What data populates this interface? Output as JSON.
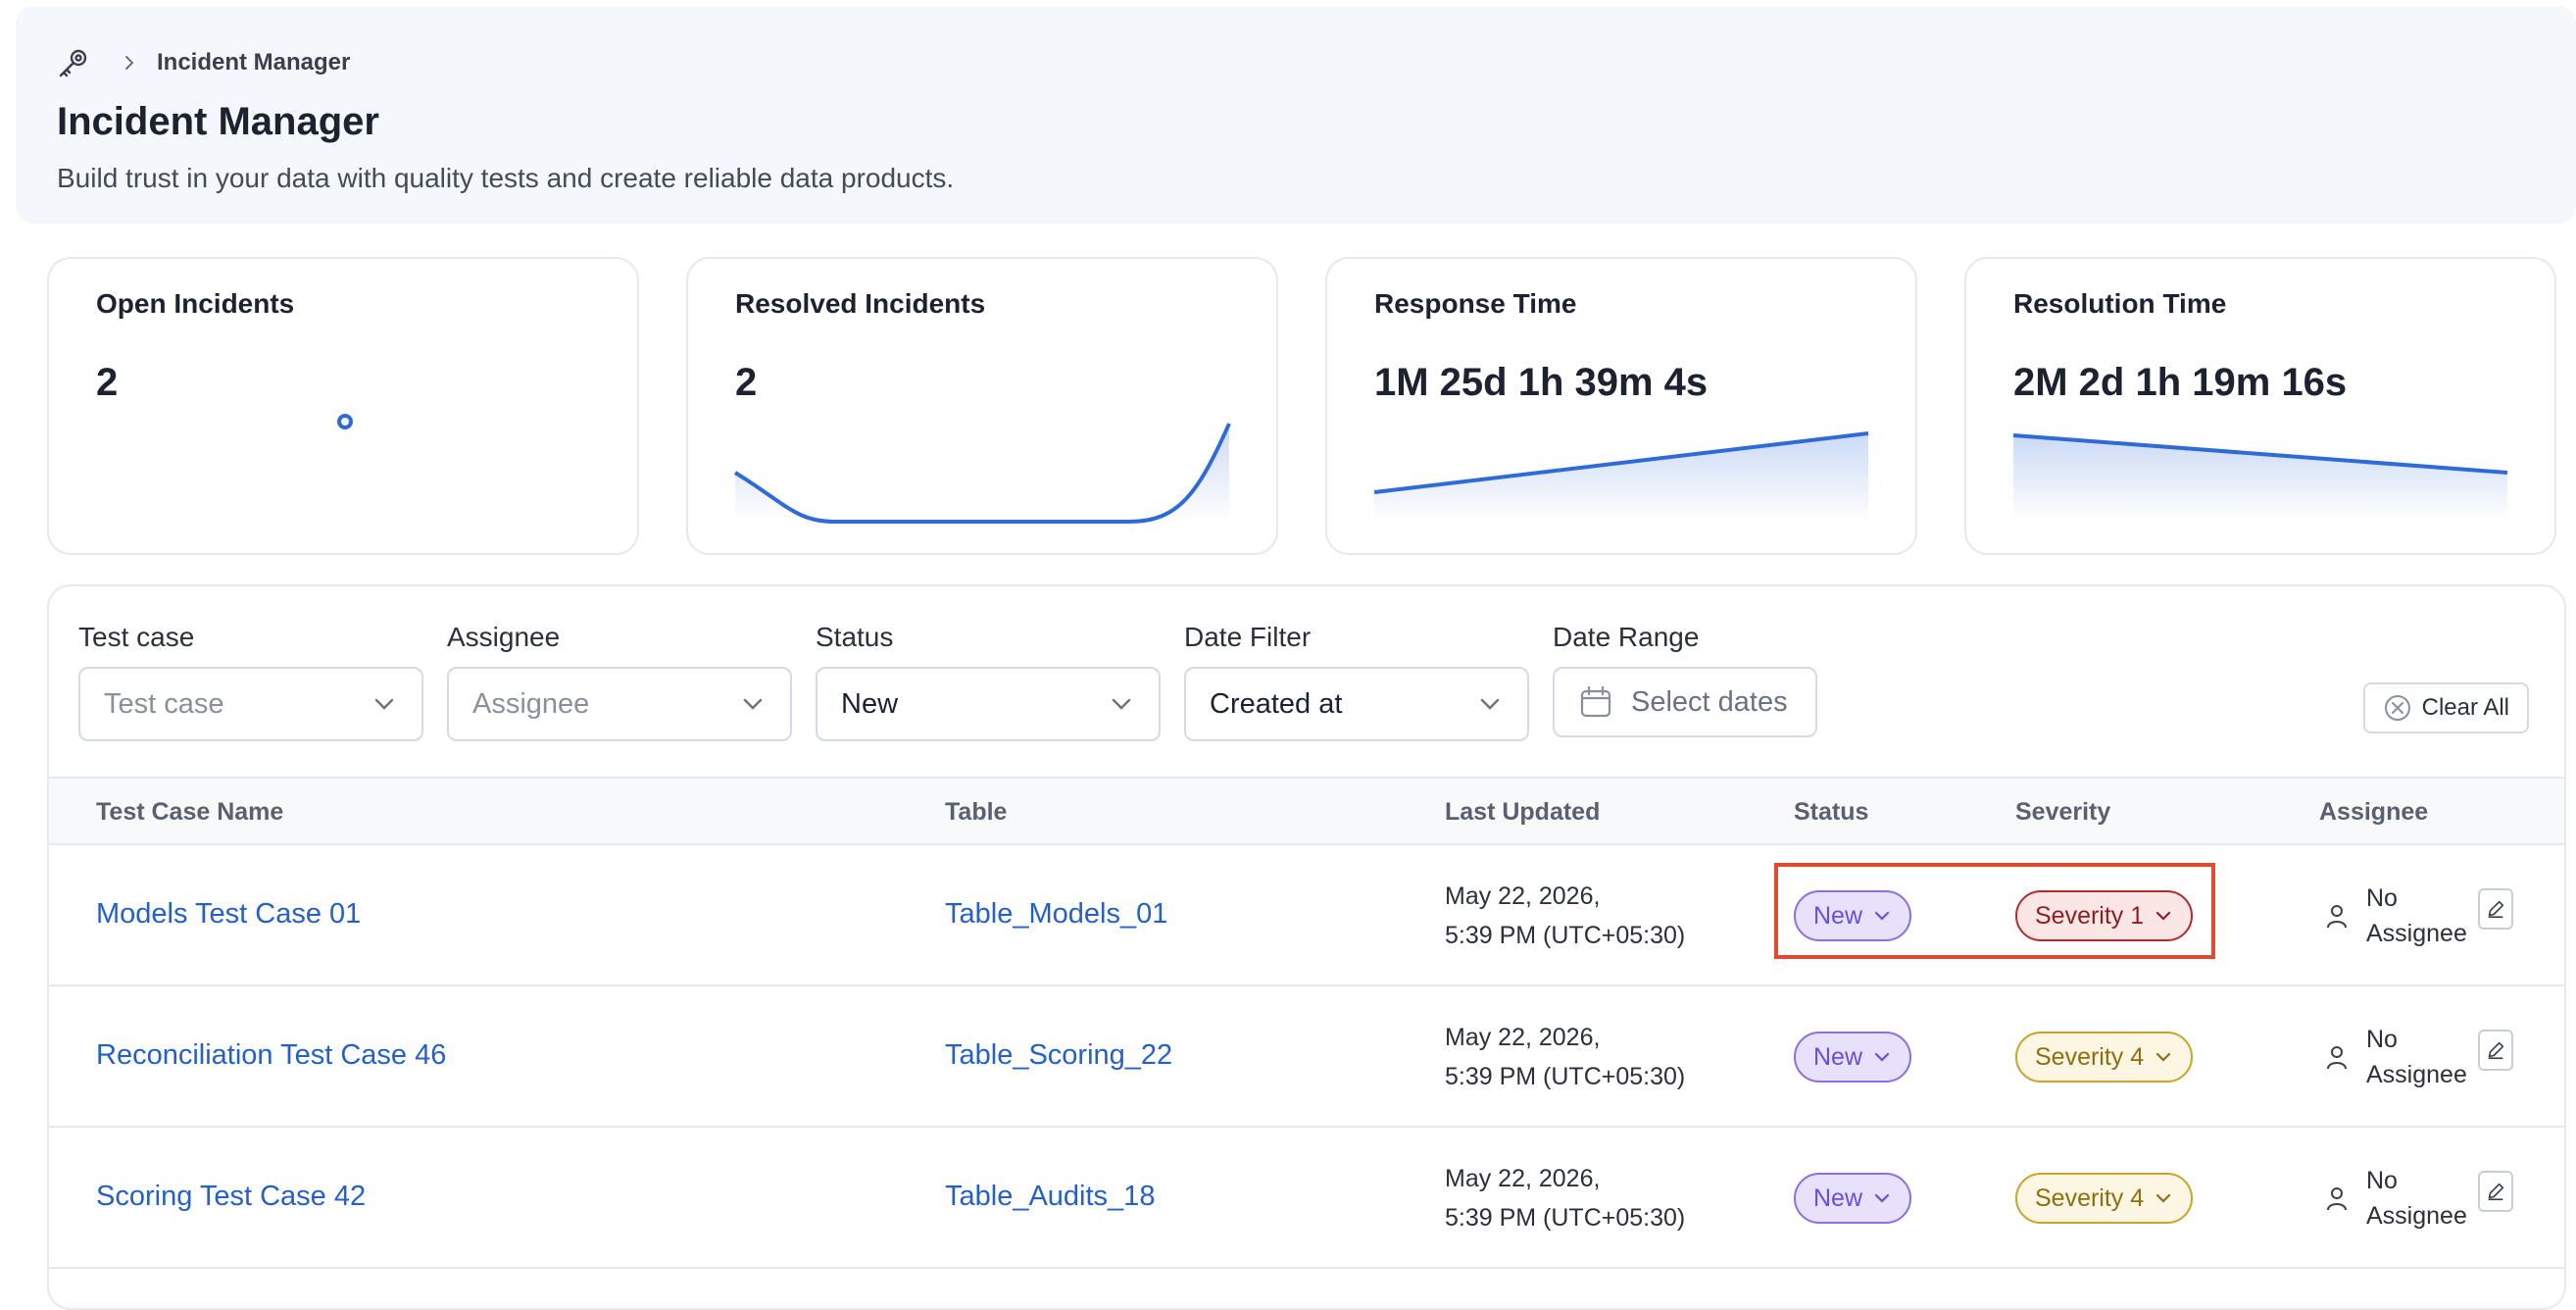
{
  "breadcrumb": {
    "icon": "wrench-gear-icon",
    "current": "Incident Manager"
  },
  "header": {
    "title": "Incident Manager",
    "subtitle": "Build trust in your data with quality tests and create reliable data products."
  },
  "cards": [
    {
      "title": "Open Incidents",
      "value": "2"
    },
    {
      "title": "Resolved Incidents",
      "value": "2"
    },
    {
      "title": "Response Time",
      "value": "1M 25d 1h 39m 4s"
    },
    {
      "title": "Resolution Time",
      "value": "2M 2d 1h 19m 16s"
    }
  ],
  "filters": {
    "test_case": {
      "label": "Test case",
      "placeholder": "Test case"
    },
    "assignee": {
      "label": "Assignee",
      "placeholder": "Assignee"
    },
    "status": {
      "label": "Status",
      "value": "New"
    },
    "date_filter": {
      "label": "Date Filter",
      "value": "Created at"
    },
    "date_range": {
      "label": "Date Range",
      "placeholder": "Select dates"
    },
    "clear_all": "Clear All"
  },
  "table": {
    "columns": [
      "Test Case Name",
      "Table",
      "Last Updated",
      "Status",
      "Severity",
      "Assignee"
    ],
    "rows": [
      {
        "name": "Models Test Case 01",
        "table": "Table_Models_01",
        "date_line1": "May 22, 2026,",
        "date_line2": "5:39 PM (UTC+05:30)",
        "status": "New",
        "severity": "Severity 1",
        "assignee_line1": "No",
        "assignee_line2": "Assignee"
      },
      {
        "name": "Reconciliation Test Case 46",
        "table": "Table_Scoring_22",
        "date_line1": "May 22, 2026,",
        "date_line2": "5:39 PM (UTC+05:30)",
        "status": "New",
        "severity": "Severity 4",
        "assignee_line1": "No",
        "assignee_line2": "Assignee"
      },
      {
        "name": "Scoring Test Case 42",
        "table": "Table_Audits_18",
        "date_line1": "May 22, 2026,",
        "date_line2": "5:39 PM (UTC+05:30)",
        "status": "New",
        "severity": "Severity 4",
        "assignee_line1": "No",
        "assignee_line2": "Assignee"
      }
    ]
  },
  "colors": {
    "link": "#2460c8",
    "sparkline": "#2f6bd8",
    "status_new": "#8b6fe3",
    "severity_1": "#b42b2b",
    "severity_4": "#c9a42a",
    "highlight": "#e24a2f"
  }
}
